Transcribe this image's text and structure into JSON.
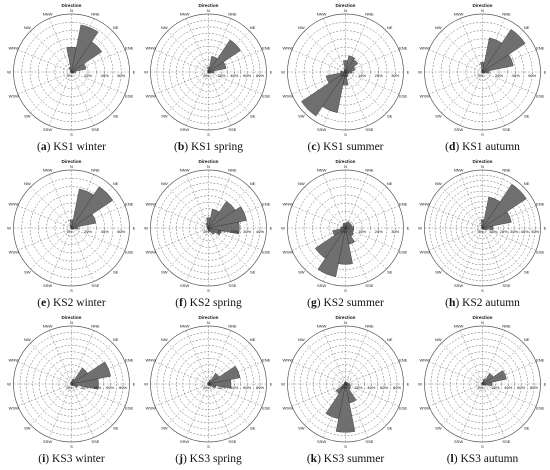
{
  "directions": [
    "N",
    "NNE",
    "NE",
    "ENE",
    "E",
    "ESE",
    "SE",
    "SSE",
    "S",
    "SSW",
    "SW",
    "WSW",
    "W",
    "WNW",
    "NW",
    "NNW"
  ],
  "colors": {
    "petal": "#6f6f6f",
    "petal_stroke": "#333333",
    "grid": "#666666"
  },
  "chart_data": [
    {
      "type": "radar",
      "panel_letter": "a",
      "caption": "KS1 winter",
      "title": "Direction",
      "r_ticks": [
        0,
        20,
        40,
        60
      ],
      "tick_labels": [
        "0%",
        "20%",
        "40%",
        "60%"
      ],
      "rmax": 70,
      "theta": [
        "N",
        "NNE",
        "NE",
        "ENE",
        "E",
        "ESE",
        "SE",
        "SSE",
        "S",
        "SSW",
        "SW",
        "WSW",
        "W",
        "WNW",
        "NW",
        "NNW"
      ],
      "values": [
        30,
        58,
        44,
        18,
        5,
        3,
        2,
        1,
        1,
        0,
        0,
        0,
        0,
        1,
        2,
        6
      ]
    },
    {
      "type": "radar",
      "panel_letter": "b",
      "caption": "KS1 spring",
      "title": "Direction",
      "r_ticks": [
        0,
        20,
        40,
        60,
        80
      ],
      "tick_labels": [
        "0%",
        "20%",
        "40%",
        "60%",
        "80%"
      ],
      "rmax": 90,
      "theta": [
        "N",
        "NNE",
        "NE",
        "ENE",
        "E",
        "ESE",
        "SE",
        "SSE",
        "S",
        "SSW",
        "SW",
        "WSW",
        "W",
        "WNW",
        "NW",
        "NNW"
      ],
      "values": [
        8,
        25,
        60,
        28,
        8,
        4,
        2,
        2,
        1,
        1,
        1,
        0,
        0,
        0,
        1,
        3
      ]
    },
    {
      "type": "radar",
      "panel_letter": "c",
      "caption": "KS1 summer",
      "title": "Direction",
      "r_ticks": [
        0,
        10,
        20,
        30
      ],
      "tick_labels": [
        "0%",
        "10%",
        "20%",
        "30%"
      ],
      "rmax": 35,
      "theta": [
        "N",
        "NNE",
        "NE",
        "ENE",
        "E",
        "ESE",
        "SE",
        "SSE",
        "S",
        "SSW",
        "SW",
        "WSW",
        "W",
        "WNW",
        "NW",
        "NNW"
      ],
      "values": [
        7,
        10,
        9,
        6,
        4,
        2,
        2,
        3,
        8,
        25,
        32,
        12,
        3,
        1,
        1,
        2
      ]
    },
    {
      "type": "radar",
      "panel_letter": "d",
      "caption": "KS1 autumn",
      "title": "Direction",
      "r_ticks": [
        0,
        20,
        40,
        60
      ],
      "tick_labels": [
        "0%",
        "20%",
        "40%",
        "60%"
      ],
      "rmax": 70,
      "theta": [
        "N",
        "NNE",
        "NE",
        "ENE",
        "E",
        "ESE",
        "SE",
        "SSE",
        "S",
        "SSW",
        "SW",
        "WSW",
        "W",
        "WNW",
        "NW",
        "NNW"
      ],
      "values": [
        12,
        42,
        62,
        38,
        8,
        3,
        2,
        1,
        1,
        0,
        0,
        0,
        0,
        0,
        1,
        3
      ]
    },
    {
      "type": "radar",
      "panel_letter": "e",
      "caption": "KS2 winter",
      "title": "Direction",
      "r_ticks": [
        0,
        20,
        40,
        60
      ],
      "tick_labels": [
        "0%",
        "20%",
        "40%",
        "60%"
      ],
      "rmax": 70,
      "theta": [
        "N",
        "NNE",
        "NE",
        "ENE",
        "E",
        "ESE",
        "SE",
        "SSE",
        "S",
        "SSW",
        "SW",
        "WSW",
        "W",
        "WNW",
        "NW",
        "NNW"
      ],
      "values": [
        10,
        48,
        60,
        30,
        8,
        3,
        2,
        1,
        1,
        0,
        0,
        0,
        0,
        1,
        2,
        4
      ]
    },
    {
      "type": "radar",
      "panel_letter": "f",
      "caption": "KS2 spring",
      "title": "Direction",
      "r_ticks": [
        0,
        10,
        20,
        30,
        40
      ],
      "tick_labels": [
        "0%",
        "10%",
        "20%",
        "30%",
        "40%"
      ],
      "rmax": 45,
      "theta": [
        "N",
        "NNE",
        "NE",
        "ENE",
        "E",
        "ESE",
        "SE",
        "SSE",
        "S",
        "SSW",
        "SW",
        "WSW",
        "W",
        "WNW",
        "NW",
        "NNW"
      ],
      "values": [
        8,
        15,
        25,
        30,
        24,
        10,
        6,
        3,
        2,
        1,
        1,
        1,
        1,
        1,
        2,
        4
      ]
    },
    {
      "type": "radar",
      "panel_letter": "g",
      "caption": "KS2 summer",
      "title": "Direction",
      "r_ticks": [
        0,
        10,
        20,
        30
      ],
      "tick_labels": [
        "0%",
        "10%",
        "20%",
        "30%"
      ],
      "rmax": 35,
      "theta": [
        "N",
        "NNE",
        "NE",
        "ENE",
        "E",
        "ESE",
        "SE",
        "SSE",
        "S",
        "SSW",
        "SW",
        "WSW",
        "W",
        "WNW",
        "NW",
        "NNW"
      ],
      "values": [
        3,
        4,
        4,
        4,
        5,
        5,
        6,
        10,
        22,
        30,
        22,
        8,
        3,
        2,
        2,
        3
      ]
    },
    {
      "type": "radar",
      "panel_letter": "h",
      "caption": "KS2 autumn",
      "title": "Direction",
      "r_ticks": [
        0,
        10,
        20,
        30,
        40,
        50
      ],
      "tick_labels": [
        "0%",
        "10%",
        "20%",
        "30%",
        "40%",
        "50%"
      ],
      "rmax": 55,
      "theta": [
        "N",
        "NNE",
        "NE",
        "ENE",
        "E",
        "ESE",
        "SE",
        "SSE",
        "S",
        "SSW",
        "SW",
        "WSW",
        "W",
        "WNW",
        "NW",
        "NNW"
      ],
      "values": [
        8,
        30,
        50,
        28,
        10,
        4,
        2,
        1,
        1,
        0,
        0,
        0,
        0,
        1,
        1,
        3
      ]
    },
    {
      "type": "radar",
      "panel_letter": "i",
      "caption": "KS3 winter",
      "title": "Direction",
      "r_ticks": [
        0,
        20,
        40,
        60,
        80
      ],
      "tick_labels": [
        "0%",
        "20%",
        "40%",
        "60%",
        "80%"
      ],
      "rmax": 90,
      "theta": [
        "N",
        "NNE",
        "NE",
        "ENE",
        "E",
        "ESE",
        "SE",
        "SSE",
        "S",
        "SSW",
        "SW",
        "WSW",
        "W",
        "WNW",
        "NW",
        "NNW"
      ],
      "values": [
        4,
        8,
        30,
        62,
        42,
        10,
        4,
        2,
        1,
        1,
        0,
        0,
        0,
        1,
        1,
        2
      ]
    },
    {
      "type": "radar",
      "panel_letter": "j",
      "caption": "KS3 spring",
      "title": "Direction",
      "r_ticks": [
        0,
        20,
        40,
        60,
        80
      ],
      "tick_labels": [
        "0%",
        "20%",
        "40%",
        "60%",
        "80%"
      ],
      "rmax": 90,
      "theta": [
        "N",
        "NNE",
        "NE",
        "ENE",
        "E",
        "ESE",
        "SE",
        "SSE",
        "S",
        "SSW",
        "SW",
        "WSW",
        "W",
        "WNW",
        "NW",
        "NNW"
      ],
      "values": [
        3,
        6,
        20,
        50,
        35,
        12,
        5,
        3,
        2,
        1,
        1,
        1,
        1,
        1,
        1,
        2
      ]
    },
    {
      "type": "radar",
      "panel_letter": "k",
      "caption": "KS3 summer",
      "title": "Direction",
      "r_ticks": [
        0,
        20,
        40,
        60,
        80
      ],
      "tick_labels": [
        "0%",
        "20%",
        "40%",
        "60%",
        "80%"
      ],
      "rmax": 90,
      "theta": [
        "N",
        "NNE",
        "NE",
        "ENE",
        "E",
        "ESE",
        "SE",
        "SSE",
        "S",
        "SSW",
        "SW",
        "WSW",
        "W",
        "WNW",
        "NW",
        "NNW"
      ],
      "values": [
        4,
        3,
        3,
        4,
        6,
        8,
        10,
        30,
        75,
        55,
        18,
        5,
        2,
        2,
        2,
        3
      ]
    },
    {
      "type": "radar",
      "panel_letter": "l",
      "caption": "KS3 autumn",
      "title": "Direction",
      "r_ticks": [
        0,
        20,
        40,
        60,
        80
      ],
      "tick_labels": [
        "0%",
        "20%",
        "40%",
        "60%",
        "80%"
      ],
      "rmax": 90,
      "theta": [
        "N",
        "NNE",
        "NE",
        "ENE",
        "E",
        "ESE",
        "SE",
        "SSE",
        "S",
        "SSW",
        "SW",
        "WSW",
        "W",
        "WNW",
        "NW",
        "NNW"
      ],
      "values": [
        3,
        8,
        20,
        38,
        15,
        5,
        2,
        1,
        1,
        0,
        0,
        0,
        0,
        1,
        1,
        2
      ]
    }
  ]
}
